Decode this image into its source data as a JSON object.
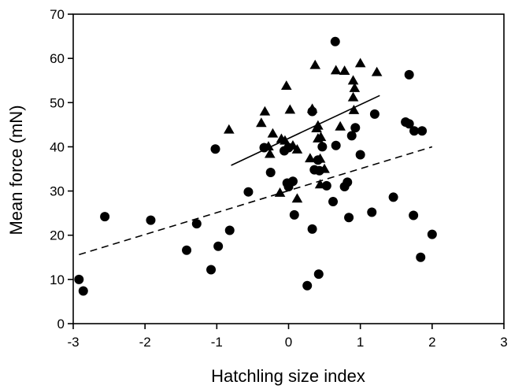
{
  "chart_data": {
    "type": "scatter",
    "title": "",
    "xlabel": "Hatchling size index",
    "ylabel": "Mean force (mN)",
    "xlim": [
      -3,
      3
    ],
    "ylim": [
      0,
      70
    ],
    "x_ticks": [
      -3,
      -2,
      -1,
      0,
      1,
      2,
      3
    ],
    "y_ticks": [
      0,
      10,
      20,
      30,
      40,
      50,
      60,
      70
    ],
    "grid": false,
    "legend": "none",
    "series": [
      {
        "marker": "circle",
        "color": "#000000",
        "points": [
          [
            -2.92,
            10.0
          ],
          [
            -2.86,
            7.4
          ],
          [
            -2.56,
            24.2
          ],
          [
            -1.92,
            23.4
          ],
          [
            -1.28,
            22.6
          ],
          [
            -1.42,
            16.6
          ],
          [
            -0.82,
            21.1
          ],
          [
            -1.02,
            39.5
          ],
          [
            -0.98,
            17.5
          ],
          [
            -1.08,
            12.2
          ],
          [
            -0.56,
            29.8
          ],
          [
            -0.34,
            39.8
          ],
          [
            -0.25,
            34.2
          ],
          [
            -0.06,
            39.1
          ],
          [
            0.0,
            39.8
          ],
          [
            -0.02,
            31.8
          ],
          [
            0.06,
            32.2
          ],
          [
            0.08,
            24.6
          ],
          [
            0.0,
            31.0
          ],
          [
            0.33,
            48.0
          ],
          [
            0.36,
            34.8
          ],
          [
            0.41,
            37.0
          ],
          [
            0.43,
            34.6
          ],
          [
            0.47,
            40.0
          ],
          [
            0.53,
            31.2
          ],
          [
            0.33,
            21.4
          ],
          [
            0.26,
            8.6
          ],
          [
            0.42,
            11.2
          ],
          [
            0.62,
            27.6
          ],
          [
            0.66,
            40.3
          ],
          [
            0.78,
            31.0
          ],
          [
            0.82,
            32.0
          ],
          [
            0.88,
            42.5
          ],
          [
            0.84,
            24.0
          ],
          [
            0.93,
            44.3
          ],
          [
            1.0,
            38.2
          ],
          [
            0.65,
            63.8
          ],
          [
            1.2,
            47.4
          ],
          [
            1.16,
            25.2
          ],
          [
            1.46,
            28.6
          ],
          [
            1.63,
            45.6
          ],
          [
            1.68,
            45.2
          ],
          [
            1.68,
            56.3
          ],
          [
            1.75,
            43.6
          ],
          [
            1.74,
            24.5
          ],
          [
            1.86,
            43.6
          ],
          [
            1.84,
            15.0
          ],
          [
            2.0,
            20.2
          ]
        ]
      },
      {
        "marker": "triangle",
        "color": "#000000",
        "points": [
          [
            -0.83,
            43.9
          ],
          [
            -0.38,
            45.4
          ],
          [
            -0.33,
            48.0
          ],
          [
            -0.28,
            40.1
          ],
          [
            -0.26,
            38.4
          ],
          [
            -0.22,
            43.0
          ],
          [
            -0.1,
            41.8
          ],
          [
            -0.05,
            41.4
          ],
          [
            -0.03,
            53.8
          ],
          [
            0.02,
            48.4
          ],
          [
            0.06,
            40.3
          ],
          [
            0.12,
            39.4
          ],
          [
            -0.12,
            29.6
          ],
          [
            0.12,
            28.3
          ],
          [
            0.3,
            37.4
          ],
          [
            0.33,
            48.6
          ],
          [
            0.37,
            58.5
          ],
          [
            0.39,
            44.2
          ],
          [
            0.41,
            44.8
          ],
          [
            0.41,
            41.9
          ],
          [
            0.44,
            37.3
          ],
          [
            0.44,
            31.5
          ],
          [
            0.45,
            42.2
          ],
          [
            0.5,
            35.0
          ],
          [
            0.66,
            57.3
          ],
          [
            0.72,
            44.6
          ],
          [
            0.78,
            57.2
          ],
          [
            0.9,
            55.0
          ],
          [
            0.9,
            51.2
          ],
          [
            0.92,
            53.3
          ],
          [
            0.91,
            48.3
          ],
          [
            1.0,
            58.9
          ],
          [
            1.23,
            56.9
          ]
        ]
      }
    ],
    "regression_lines": [
      {
        "style": "solid",
        "color": "#000000",
        "x": [
          -0.8,
          1.27
        ],
        "y": [
          35.8,
          51.6
        ]
      },
      {
        "style": "dashed",
        "color": "#000000",
        "x": [
          -2.92,
          2.0
        ],
        "y": [
          15.6,
          40.0
        ]
      }
    ]
  }
}
